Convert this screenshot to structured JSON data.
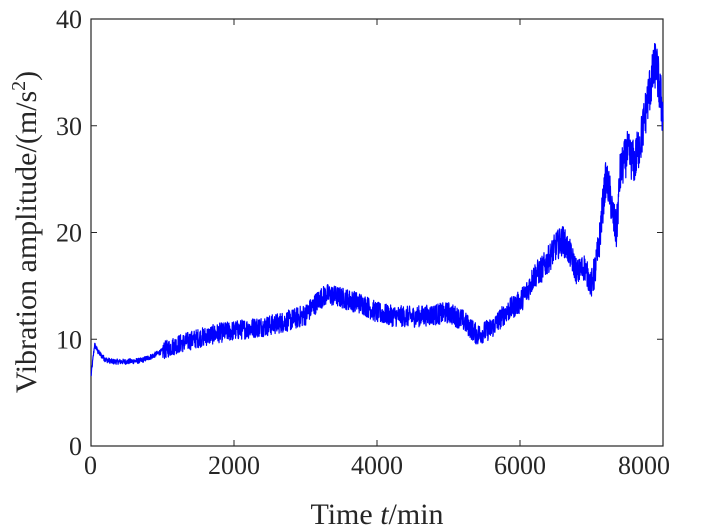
{
  "chart_data": {
    "type": "line",
    "title": "",
    "xlabel_prefix": "Time ",
    "xlabel_var": "t",
    "xlabel_suffix": "/min",
    "ylabel_main": "Vibration amplitude/(m/s",
    "ylabel_sup": "2",
    "ylabel_close": ")",
    "xlim": [
      0,
      8000
    ],
    "ylim": [
      0,
      40
    ],
    "xticks": [
      0,
      2000,
      4000,
      6000,
      8000
    ],
    "yticks": [
      0,
      10,
      20,
      30,
      40
    ],
    "grid": false,
    "line_color": "#0000ff",
    "series": [
      {
        "x": [
          0,
          50,
          100,
          200,
          300,
          500,
          700,
          850,
          1000,
          1200,
          1500,
          1800,
          2000,
          2200,
          2500,
          2800,
          3000,
          3200,
          3300,
          3500,
          3800,
          4000,
          4200,
          4500,
          4800,
          5000,
          5200,
          5400,
          5600,
          5800,
          6000,
          6100,
          6200,
          6300,
          6400,
          6500,
          6600,
          6700,
          6800,
          6900,
          7000,
          7050,
          7100,
          7150,
          7200,
          7250,
          7300,
          7350,
          7400,
          7500,
          7600,
          7700,
          7800,
          7850,
          7900,
          7950,
          8000
        ],
        "y": [
          6.5,
          9.5,
          8.8,
          8.1,
          7.9,
          7.9,
          8.0,
          8.4,
          8.9,
          9.5,
          10.1,
          10.6,
          10.8,
          11.0,
          11.3,
          11.8,
          12.3,
          13.8,
          14.2,
          13.9,
          13.3,
          12.5,
          12.2,
          12.1,
          12.3,
          12.5,
          11.8,
          10.4,
          11.0,
          12.5,
          13.5,
          14.5,
          16.0,
          16.5,
          17.5,
          18.7,
          19.3,
          18.0,
          16.2,
          16.8,
          15.0,
          16.5,
          18.5,
          22.0,
          25.0,
          24.0,
          21.5,
          20.0,
          25.5,
          27.5,
          26.5,
          29.0,
          33.0,
          34.5,
          36.0,
          33.5,
          31.0
        ]
      }
    ]
  }
}
